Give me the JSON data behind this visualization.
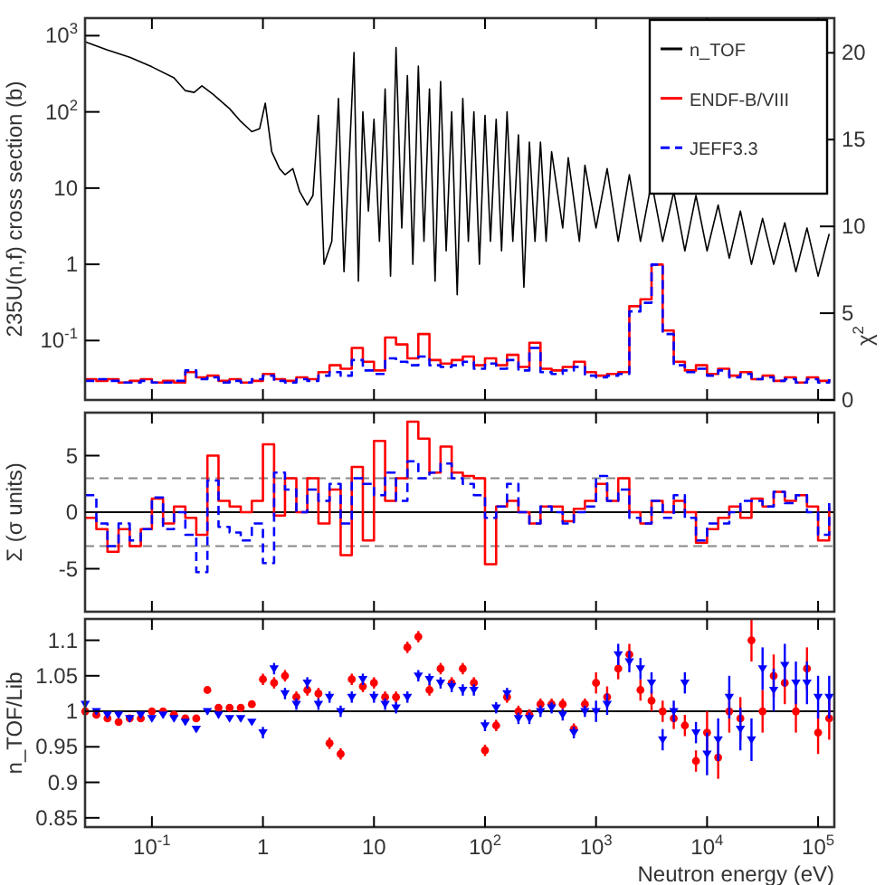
{
  "chart_data": [
    {
      "type": "line",
      "ylabel": "235U(n,f) cross section (b)",
      "y2label": "χ$^{2}$",
      "log": "xy",
      "legend": "top right",
      "tick_labels": "y",
      "xlim": [
        0.025,
        140000
      ],
      "xticks": [
        {
          "value": 0.1,
          "label": null
        },
        {
          "value": 1,
          "label": null
        },
        {
          "value": 10,
          "label": null
        },
        {
          "value": 100,
          "label": null
        },
        {
          "value": 1000,
          "label": null
        },
        {
          "value": 10000,
          "label": null
        },
        {
          "value": 100000,
          "label": null
        }
      ],
      "ylim": [
        0.0166,
        1700
      ],
      "yticks": [
        {
          "value": 0.1,
          "label": "10$^{-1}$"
        },
        1,
        10,
        {
          "value": 100,
          "label": "10$^{2}$"
        },
        {
          "value": 1000,
          "label": "10$^{3}$"
        }
      ],
      "y2lim": [
        0,
        22
      ],
      "y2ticks": [
        0,
        5,
        10,
        15,
        20
      ],
      "series": [
        {
          "name": "n_TOF",
          "color": "#000000",
          "x": [
            0.0251,
            0.0398,
            0.0631,
            0.1,
            0.158,
            0.2,
            0.24,
            0.282,
            0.355,
            0.501,
            0.631,
            0.794,
            0.933,
            1.05,
            1.2,
            1.41,
            1.58,
            1.86,
            2.14,
            2.51,
            2.82,
            3.16,
            3.55,
            4.17,
            4.79,
            5.37,
            6.03,
            6.61,
            7.24,
            7.94,
            8.91,
            10,
            11.2,
            12.6,
            14.1,
            15.8,
            17.8,
            20,
            22.4,
            25.1,
            28.2,
            31.6,
            35.5,
            39.8,
            44.7,
            50.1,
            56.2,
            63.1,
            70.8,
            79.4,
            89.1,
            100,
            112,
            126,
            141,
            158,
            178,
            200,
            224,
            251,
            282,
            316,
            355,
            398,
            501,
            562,
            708,
            794,
            1000,
            1259,
            1585,
            1995,
            2512,
            3162,
            3981,
            5012,
            6310,
            7943,
            10000,
            12589,
            15849,
            19953,
            25119,
            31623,
            39811,
            50119,
            63096,
            79433,
            100000,
            125893
          ],
          "values": [
            830,
            650,
            520,
            390,
            280,
            190,
            180,
            220,
            170,
            110,
            75,
            55,
            60,
            130,
            30,
            18,
            15,
            18,
            9,
            6,
            8,
            90,
            1.0,
            2,
            150,
            0.8,
            30,
            600,
            0.6,
            100,
            5,
            80,
            2,
            200,
            0.7,
            700,
            3,
            300,
            1.0,
            400,
            2,
            200,
            0.6,
            250,
            1.5,
            100,
            0.4,
            150,
            2,
            100,
            1,
            90,
            2,
            80,
            1.5,
            100,
            2,
            50,
            0.5,
            40,
            2,
            40,
            2,
            30,
            3,
            25,
            2,
            20,
            3,
            18,
            2,
            15,
            2,
            12,
            2,
            9,
            1.5,
            8,
            1.5,
            6,
            1.2,
            5,
            1.0,
            4,
            1.0,
            3.5,
            0.8,
            3,
            0.7,
            2.5
          ]
        },
        {
          "name": "ENDF-B/VIII",
          "type": "step",
          "axis": "y2",
          "color": "#ff0000",
          "x": [
            0.0251,
            0.0316,
            0.0398,
            0.0501,
            0.0631,
            0.0794,
            0.1,
            0.126,
            0.158,
            0.2,
            0.251,
            0.316,
            0.398,
            0.501,
            0.631,
            0.794,
            1,
            1.26,
            1.58,
            2,
            2.51,
            3.16,
            3.98,
            5.01,
            6.31,
            7.94,
            10,
            12.6,
            15.8,
            20,
            25.1,
            31.6,
            39.8,
            50.1,
            63.1,
            79.4,
            100,
            126,
            158,
            200,
            251,
            316,
            398,
            501,
            631,
            794,
            1000,
            1259,
            1585,
            1995,
            2512,
            3162,
            3981,
            5012,
            6310,
            7943,
            10000,
            12589,
            15849,
            19953,
            25119,
            31623,
            39811,
            50119,
            63096,
            79433,
            100000,
            125893
          ],
          "values": [
            1.2,
            1.1,
            1.2,
            1.0,
            1.1,
            1.2,
            1.0,
            1.1,
            1.0,
            1.6,
            1.3,
            1.4,
            1.1,
            1.2,
            1.0,
            1.1,
            1.5,
            1.2,
            1.1,
            1.3,
            1.2,
            1.6,
            2.0,
            1.8,
            3.0,
            2.2,
            1.7,
            3.6,
            3.2,
            2.4,
            3.8,
            2.3,
            2.1,
            2.3,
            2.5,
            2.0,
            2.4,
            2.0,
            2.6,
            1.9,
            3.3,
            1.8,
            1.7,
            1.9,
            2.2,
            1.6,
            1.4,
            1.5,
            1.6,
            5.4,
            5.8,
            7.8,
            4.0,
            2.2,
            1.7,
            2.0,
            1.5,
            1.8,
            1.4,
            1.6,
            1.2,
            1.4,
            1.1,
            1.3,
            1.0,
            1.3,
            1.1,
            1.2
          ]
        },
        {
          "name": "JEFF3.3",
          "type": "step",
          "axis": "y2",
          "color": "#0000ff",
          "line_style": "dashed",
          "x": [
            0.0251,
            0.0316,
            0.0398,
            0.0501,
            0.0631,
            0.0794,
            0.1,
            0.126,
            0.158,
            0.2,
            0.251,
            0.316,
            0.398,
            0.501,
            0.631,
            0.794,
            1,
            1.26,
            1.58,
            2,
            2.51,
            3.16,
            3.98,
            5.01,
            6.31,
            7.94,
            10,
            12.6,
            15.8,
            20,
            25.1,
            31.6,
            39.8,
            50.1,
            63.1,
            79.4,
            100,
            126,
            158,
            200,
            251,
            316,
            398,
            501,
            631,
            794,
            1000,
            1259,
            1585,
            1995,
            2512,
            3162,
            3981,
            5012,
            6310,
            7943,
            10000,
            12589,
            15849,
            19953,
            25119,
            31623,
            39811,
            50119,
            63096,
            79433,
            100000,
            125893
          ],
          "values": [
            1.1,
            1.2,
            1.1,
            1.0,
            1.0,
            1.1,
            1.0,
            1.0,
            1.1,
            1.7,
            1.2,
            1.3,
            1.0,
            1.1,
            1.0,
            1.2,
            1.4,
            1.1,
            1.0,
            1.2,
            1.1,
            1.4,
            1.6,
            1.4,
            2.3,
            1.7,
            1.5,
            2.4,
            2.2,
            2.0,
            2.5,
            2.0,
            1.9,
            2.0,
            2.2,
            1.8,
            2.1,
            1.8,
            2.3,
            1.7,
            3.0,
            1.6,
            1.5,
            1.7,
            1.9,
            1.4,
            1.3,
            1.4,
            1.5,
            5.1,
            5.6,
            7.8,
            3.8,
            2.0,
            1.6,
            1.8,
            1.4,
            1.7,
            1.3,
            1.5,
            1.2,
            1.3,
            1.1,
            1.2,
            1.0,
            1.2,
            1.0,
            1.2
          ]
        }
      ]
    },
    {
      "type": "step",
      "ylabel": "Σ (σ units)",
      "log": "x",
      "tick_labels": "y",
      "xlim": [
        0.025,
        140000
      ],
      "xticks": [
        {
          "value": 0.1,
          "label": null
        },
        {
          "value": 1,
          "label": null
        },
        {
          "value": 10,
          "label": null
        },
        {
          "value": 100,
          "label": null
        },
        {
          "value": 1000,
          "label": null
        },
        {
          "value": 10000,
          "label": null
        },
        {
          "value": 100000,
          "label": null
        }
      ],
      "ylim": [
        -8.8,
        8.8
      ],
      "yticks": [
        -5,
        0,
        5
      ],
      "ref_lines": [
        {
          "axis": "y",
          "value": 3,
          "color": "#888888",
          "line_style": "dashed"
        },
        {
          "axis": "y",
          "value": -3,
          "color": "#888888",
          "line_style": "dashed"
        },
        {
          "axis": "y",
          "value": 0,
          "color": "#000000",
          "line_style": "solid"
        }
      ],
      "x": [
        0.0251,
        0.0316,
        0.0398,
        0.0501,
        0.0631,
        0.0794,
        0.1,
        0.126,
        0.158,
        0.2,
        0.251,
        0.316,
        0.398,
        0.501,
        0.631,
        0.794,
        1,
        1.26,
        1.58,
        2,
        2.51,
        3.16,
        3.98,
        5.01,
        6.31,
        7.94,
        10,
        12.6,
        15.8,
        20,
        25.1,
        31.6,
        39.8,
        50.1,
        63.1,
        79.4,
        100,
        126,
        158,
        200,
        251,
        316,
        398,
        501,
        631,
        794,
        1000,
        1259,
        1585,
        1995,
        2512,
        3162,
        3981,
        5012,
        6310,
        7943,
        10000,
        12589,
        15849,
        19953,
        25119,
        31623,
        39811,
        50119,
        63096,
        79433,
        100000,
        125893
      ],
      "series": [
        {
          "color": "#ff0000",
          "values": [
            -0.5,
            -1.5,
            -3.5,
            -1.5,
            -3,
            -1.5,
            1.2,
            -1,
            0.5,
            -0.5,
            -2,
            5,
            1,
            0.5,
            0,
            1,
            6,
            -0.3,
            3,
            0,
            3,
            -1,
            2,
            -3.8,
            4,
            -2.5,
            6.3,
            1,
            3,
            8,
            6.5,
            3.5,
            5.8,
            3.5,
            3.2,
            3,
            -4.6,
            0.5,
            1,
            0,
            -1,
            0.5,
            0.5,
            -0.8,
            0.3,
            1,
            2.5,
            1,
            3,
            0,
            -1,
            1,
            0,
            1,
            0,
            -2.7,
            -1.5,
            -0.5,
            0.5,
            -0.5,
            1.2,
            0.5,
            1.8,
            1,
            1.5,
            0.5,
            -2.5,
            0.5
          ]
        },
        {
          "color": "#0000ff",
          "line_style": "dashed",
          "values": [
            1.5,
            -1,
            -3,
            -1,
            -2.5,
            -1.5,
            1.3,
            -1.5,
            0,
            -2,
            -5.3,
            2.8,
            -1.3,
            -1.8,
            -2.5,
            -1,
            -4.5,
            3.5,
            2,
            0,
            2,
            1,
            2.5,
            -1,
            3,
            2.5,
            1.5,
            3.5,
            1,
            4.5,
            3,
            3.5,
            4.3,
            3,
            2.5,
            1.5,
            -0.5,
            0.5,
            2.5,
            0,
            -1,
            0.5,
            0,
            -1,
            0,
            0.5,
            3.2,
            1,
            2,
            -0.5,
            -1,
            1,
            -0.5,
            1.5,
            -0.5,
            -2.5,
            -1,
            -1,
            0,
            1,
            1,
            0.5,
            1.8,
            0.8,
            1.5,
            0,
            -2,
            0.8
          ]
        }
      ]
    },
    {
      "type": "scatter",
      "ylabel": "n_TOF/Lib",
      "xlabel": "Neutron energy (eV)",
      "log": "x",
      "xlim": [
        0.025,
        140000
      ],
      "xticks": [
        {
          "value": 0.1,
          "label": "10$^{-1}$"
        },
        1,
        10,
        {
          "value": 100,
          "label": "10$^{2}$"
        },
        {
          "value": 1000,
          "label": "10$^{3}$"
        },
        {
          "value": 10000,
          "label": "10$^{4}$"
        },
        {
          "value": 100000,
          "label": "10$^{5}$"
        }
      ],
      "ylim": [
        0.837,
        1.13
      ],
      "yticks": [
        0.85,
        0.9,
        0.95,
        1,
        1.05,
        1.1
      ],
      "ref_lines": [
        {
          "axis": "y",
          "value": 1,
          "color": "#000000",
          "line_style": "solid"
        }
      ],
      "x": [
        0.0251,
        0.0316,
        0.0398,
        0.0501,
        0.0631,
        0.0794,
        0.1,
        0.126,
        0.158,
        0.2,
        0.251,
        0.316,
        0.398,
        0.501,
        0.631,
        0.794,
        1,
        1.26,
        1.58,
        2,
        2.51,
        3.16,
        3.98,
        5.01,
        6.31,
        7.94,
        10,
        12.6,
        15.8,
        20,
        25.1,
        31.6,
        39.8,
        50.1,
        63.1,
        79.4,
        100,
        126,
        158,
        200,
        251,
        316,
        398,
        501,
        631,
        794,
        1000,
        1259,
        1585,
        1995,
        2512,
        3162,
        3981,
        5012,
        6310,
        7943,
        10000,
        12589,
        15849,
        19953,
        25119,
        31623,
        39811,
        50119,
        63096,
        79433,
        100000,
        125893
      ],
      "series": [
        {
          "color": "#ff0000",
          "marker": "circle",
          "values": [
            1.0,
            0.995,
            0.99,
            0.985,
            0.99,
            0.99,
            1.0,
            1.0,
            0.995,
            0.99,
            0.99,
            1.03,
            1.005,
            1.005,
            1.005,
            1.01,
            1.045,
            1.04,
            1.05,
            1.02,
            1.03,
            1.025,
            0.955,
            0.94,
            1.045,
            1.035,
            1.04,
            1.02,
            1.02,
            1.09,
            1.105,
            1.03,
            1.06,
            1.04,
            1.06,
            1.04,
            0.945,
            0.98,
            1.02,
            1.0,
            0.995,
            1.01,
            1.01,
            1.01,
            0.975,
            1.01,
            1.04,
            1.02,
            1.06,
            1.08,
            1.03,
            1.015,
            1.0,
            0.99,
            0.98,
            0.93,
            0.97,
            0.935,
            1.0,
            0.99,
            1.1,
            1.0,
            1.05,
            1.04,
            1.0,
            1.06,
            0.97,
            0.99
          ],
          "errors": [
            0.004,
            0.004,
            0.004,
            0.004,
            0.004,
            0.004,
            0.004,
            0.004,
            0.004,
            0.004,
            0.004,
            0.004,
            0.004,
            0.004,
            0.004,
            0.004,
            0.008,
            0.008,
            0.008,
            0.008,
            0.008,
            0.008,
            0.008,
            0.008,
            0.008,
            0.008,
            0.008,
            0.008,
            0.008,
            0.008,
            0.008,
            0.008,
            0.008,
            0.008,
            0.008,
            0.008,
            0.008,
            0.008,
            0.008,
            0.008,
            0.008,
            0.008,
            0.008,
            0.008,
            0.008,
            0.008,
            0.015,
            0.015,
            0.015,
            0.015,
            0.015,
            0.015,
            0.015,
            0.015,
            0.015,
            0.015,
            0.03,
            0.03,
            0.03,
            0.03,
            0.03,
            0.03,
            0.03,
            0.03,
            0.03,
            0.03,
            0.03,
            0.03
          ]
        },
        {
          "color": "#0000ff",
          "marker": "triangle",
          "values": [
            1.01,
            1.0,
            0.995,
            0.995,
            0.99,
            0.995,
            0.99,
            0.995,
            0.99,
            0.985,
            0.975,
            1.0,
            0.995,
            0.99,
            0.99,
            0.985,
            0.97,
            1.06,
            1.025,
            1.01,
            1.04,
            1.01,
            1.02,
            1.0,
            1.02,
            1.045,
            1.02,
            1.01,
            1.005,
            1.02,
            1.05,
            1.045,
            1.04,
            1.035,
            1.03,
            1.03,
            0.98,
            1.005,
            1.025,
            0.99,
            0.99,
            1.0,
            1.005,
            0.995,
            0.97,
            1.0,
            1.0,
            1.01,
            1.08,
            1.07,
            1.06,
            1.04,
            0.96,
            1.0,
            1.04,
            0.97,
            0.94,
            0.96,
            1.02,
            0.975,
            0.96,
            1.06,
            1.03,
            1.065,
            1.04,
            1.04,
            1.02,
            1.02
          ],
          "errors": [
            0.004,
            0.004,
            0.004,
            0.004,
            0.004,
            0.004,
            0.004,
            0.004,
            0.004,
            0.004,
            0.004,
            0.004,
            0.004,
            0.004,
            0.004,
            0.004,
            0.008,
            0.008,
            0.008,
            0.008,
            0.008,
            0.008,
            0.008,
            0.008,
            0.008,
            0.008,
            0.008,
            0.008,
            0.008,
            0.008,
            0.008,
            0.008,
            0.008,
            0.008,
            0.008,
            0.008,
            0.008,
            0.008,
            0.008,
            0.008,
            0.008,
            0.008,
            0.008,
            0.008,
            0.008,
            0.008,
            0.015,
            0.015,
            0.015,
            0.015,
            0.015,
            0.015,
            0.015,
            0.015,
            0.015,
            0.015,
            0.03,
            0.03,
            0.03,
            0.03,
            0.03,
            0.03,
            0.03,
            0.03,
            0.03,
            0.03,
            0.03,
            0.03
          ]
        }
      ]
    }
  ]
}
